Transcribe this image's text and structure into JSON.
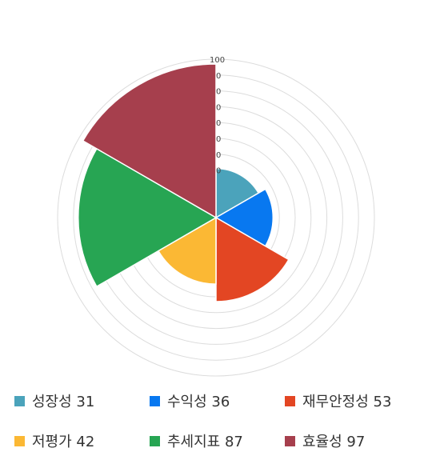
{
  "chart_data": {
    "type": "polar-area",
    "rmax": 100,
    "ticks": [
      "100",
      "0",
      "0",
      "0",
      "0",
      "0",
      "0",
      "0"
    ],
    "series": [
      {
        "name": "성장성",
        "value": 31,
        "label": "성장성 31",
        "color": "#4ba3bb"
      },
      {
        "name": "수익성",
        "value": 36,
        "label": "수익성 36",
        "color": "#0878f0"
      },
      {
        "name": "재무안정성",
        "value": 53,
        "label": "재무안정성 53",
        "color": "#e34623"
      },
      {
        "name": "저평가",
        "value": 42,
        "label": "저평가 42",
        "color": "#fbb834"
      },
      {
        "name": "추세지표",
        "value": 87,
        "label": "추세지표 87",
        "color": "#27a553"
      },
      {
        "name": "효율성",
        "value": 97,
        "label": "효율성 97",
        "color": "#a63f4d"
      }
    ]
  }
}
